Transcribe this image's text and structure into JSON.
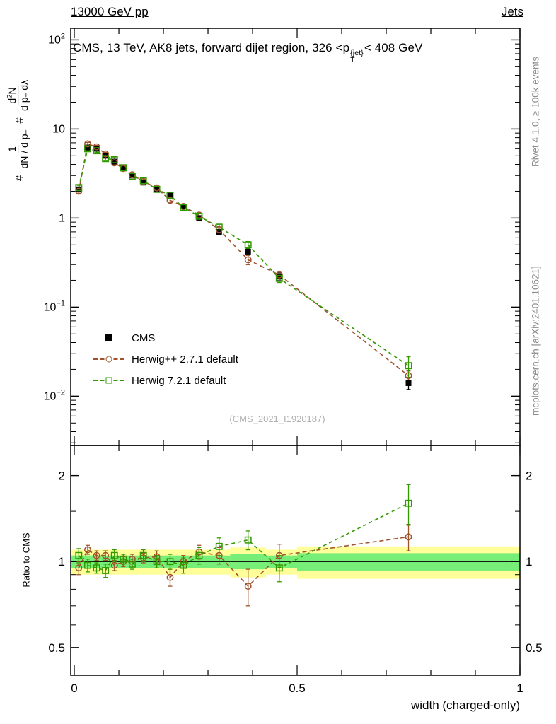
{
  "header": {
    "left": "13000 GeV pp",
    "right": "Jets"
  },
  "plot_title_rich": [
    {
      "t": "CMS, 13 TeV, AK8 jets, forward dijet region, 326 <p"
    },
    {
      "stacked": {
        "sup": "{jet}",
        "sub": "T"
      }
    },
    {
      "t": "< 408 GeV"
    }
  ],
  "ylabel_rich": [
    {
      "t": "# "
    },
    {
      "frac": {
        "num": [
          {
            "t": "1"
          }
        ],
        "den": [
          {
            "t": "dN / d p"
          },
          {
            "sub": "T"
          }
        ]
      }
    },
    {
      "t": " # "
    },
    {
      "frac": {
        "num": [
          {
            "t": "d"
          },
          {
            "sup": "2"
          },
          {
            "t": "N"
          }
        ],
        "den": [
          {
            "t": "d p"
          },
          {
            "sub": "T"
          },
          {
            "t": " dλ"
          }
        ]
      }
    }
  ],
  "ratio_ylabel": "Ratio to CMS",
  "watermark": "(CMS_2021_I1920187)",
  "side_texts": {
    "top_right": "Rivet 4.1.0, ≥ 100k events",
    "bottom_right": "mcplots.cern.ch [arXiv:2401.10621]"
  },
  "legend": {
    "items": [
      {
        "label": "CMS",
        "marker": "square-filled",
        "color": "#000000",
        "dash": false
      },
      {
        "label": "Herwig++ 2.7.1 default",
        "marker": "circle-open",
        "color": "#a0522d",
        "dash": true
      },
      {
        "label": "Herwig 7.2.1 default",
        "marker": "square-open",
        "color": "#339900",
        "dash": true
      }
    ]
  },
  "axes": {
    "x_ticks": [
      {
        "value": 0,
        "label": "0"
      },
      {
        "value": 0.5,
        "label": "0.5"
      },
      {
        "value": 1,
        "label": "1"
      }
    ],
    "x_minor": [
      0.1,
      0.2,
      0.3,
      0.4,
      0.6,
      0.7,
      0.8,
      0.9
    ],
    "main_y_ticks": [
      {
        "value": 100,
        "base": "10",
        "exp": "2"
      },
      {
        "value": 10,
        "base": "10"
      },
      {
        "value": 1,
        "base": "1"
      },
      {
        "value": 0.1,
        "base": "10",
        "exp": "−1"
      },
      {
        "value": 0.01,
        "base": "10",
        "exp": "−2"
      }
    ],
    "ratio_y_ticks": [
      {
        "value": 2,
        "label": "2"
      },
      {
        "value": 1,
        "label": "1"
      },
      {
        "value": 0.5,
        "label": "0.5"
      }
    ],
    "ratio_y_minor": [
      0.6,
      0.7,
      0.8,
      0.9,
      1.5
    ]
  },
  "chart_data": {
    "type": "line",
    "xlabel": "width (charged-only)",
    "xlim": [
      -0.008,
      1.0
    ],
    "main_ylim": [
      0.0028,
      135
    ],
    "ratio_ylim": [
      0.4,
      2.55
    ],
    "x": [
      0.01,
      0.03,
      0.05,
      0.07,
      0.09,
      0.11,
      0.13,
      0.155,
      0.185,
      0.215,
      0.245,
      0.28,
      0.325,
      0.39,
      0.46,
      0.75
    ],
    "series": [
      {
        "name": "CMS",
        "color": "#000000",
        "marker": "square-filled",
        "values": [
          2.1,
          6.2,
          6.0,
          5.0,
          4.3,
          3.6,
          3.0,
          2.5,
          2.1,
          1.8,
          1.35,
          1.0,
          0.7,
          0.42,
          0.22,
          0.014
        ],
        "yerr_frac": [
          0.05,
          0.03,
          0.03,
          0.03,
          0.03,
          0.03,
          0.03,
          0.03,
          0.04,
          0.04,
          0.04,
          0.05,
          0.06,
          0.08,
          0.1,
          0.15
        ]
      },
      {
        "name": "Herwig++ 2.7.1 default",
        "color": "#a0522d",
        "marker": "circle-open",
        "dash": "6 4",
        "values": [
          2.0,
          6.8,
          6.3,
          5.25,
          4.17,
          3.6,
          3.06,
          2.58,
          2.18,
          1.58,
          1.35,
          1.08,
          0.74,
          0.34,
          0.23,
          0.017
        ],
        "yerr_frac": [
          0.05,
          0.04,
          0.04,
          0.04,
          0.04,
          0.04,
          0.04,
          0.04,
          0.05,
          0.06,
          0.05,
          0.06,
          0.07,
          0.12,
          0.1,
          0.13
        ],
        "ratio": [
          0.95,
          1.1,
          1.05,
          1.05,
          0.97,
          1.0,
          1.02,
          1.03,
          1.04,
          0.88,
          1.0,
          1.08,
          1.05,
          0.82,
          1.05,
          1.22
        ],
        "ratio_err": [
          0.05,
          0.04,
          0.04,
          0.04,
          0.04,
          0.04,
          0.04,
          0.04,
          0.05,
          0.06,
          0.05,
          0.06,
          0.07,
          0.12,
          0.1,
          0.13
        ]
      },
      {
        "name": "Herwig 7.2.1 default",
        "color": "#339900",
        "marker": "square-open",
        "dash": "5 4",
        "values": [
          2.2,
          6.0,
          5.7,
          4.65,
          4.52,
          3.67,
          2.94,
          2.63,
          2.1,
          1.8,
          1.31,
          1.05,
          0.79,
          0.5,
          0.21,
          0.022
        ],
        "yerr_frac": [
          0.06,
          0.05,
          0.04,
          0.05,
          0.05,
          0.04,
          0.04,
          0.05,
          0.05,
          0.06,
          0.06,
          0.07,
          0.08,
          0.09,
          0.1,
          0.26
        ],
        "ratio": [
          1.05,
          0.97,
          0.95,
          0.93,
          1.05,
          1.02,
          0.98,
          1.05,
          1.0,
          1.0,
          0.97,
          1.05,
          1.13,
          1.19,
          0.95,
          1.6
        ],
        "ratio_err": [
          0.06,
          0.05,
          0.04,
          0.05,
          0.05,
          0.04,
          0.04,
          0.05,
          0.05,
          0.06,
          0.06,
          0.07,
          0.08,
          0.09,
          0.1,
          0.26
        ]
      }
    ],
    "ratio_bands": {
      "yellow": {
        "color": "#ffff99",
        "segments": [
          [
            -0.008,
            0.35,
            0.9,
            1.1
          ],
          [
            0.35,
            0.43,
            0.88,
            1.12
          ],
          [
            0.43,
            0.5,
            0.9,
            1.1
          ],
          [
            0.5,
            1.0,
            0.87,
            1.13
          ]
        ]
      },
      "green": {
        "color": "#77ee77",
        "segments": [
          [
            -0.008,
            0.35,
            0.95,
            1.05
          ],
          [
            0.35,
            0.43,
            0.94,
            1.06
          ],
          [
            0.43,
            0.5,
            0.95,
            1.05
          ],
          [
            0.5,
            1.0,
            0.93,
            1.07
          ]
        ]
      }
    }
  }
}
